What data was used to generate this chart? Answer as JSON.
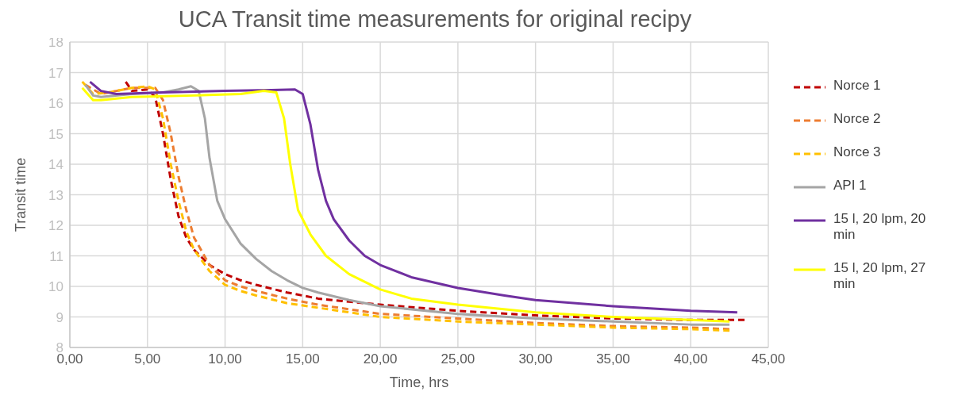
{
  "chart_data": {
    "type": "line",
    "title": "UCA Transit time measurements for original recipy",
    "xlabel": "Time, hrs",
    "ylabel": "Transit time",
    "xlim": [
      0,
      45
    ],
    "xticks": [
      {
        "value": 0,
        "label": "0,00"
      },
      {
        "value": 5,
        "label": "5,00"
      },
      {
        "value": 10,
        "label": "10,00"
      },
      {
        "value": 15,
        "label": "15,00"
      },
      {
        "value": 20,
        "label": "20,00"
      },
      {
        "value": 25,
        "label": "25,00"
      },
      {
        "value": 30,
        "label": "30,00"
      },
      {
        "value": 35,
        "label": "35,00"
      },
      {
        "value": 40,
        "label": "40,00"
      },
      {
        "value": 45,
        "label": "45,00"
      }
    ],
    "ylim": [
      8,
      18
    ],
    "yticks": [
      8,
      9,
      10,
      11,
      12,
      13,
      14,
      15,
      16,
      17,
      18
    ],
    "grid": true,
    "legend": "right",
    "marker": "none",
    "series": [
      {
        "name": "Norce 1",
        "color": "#c00000",
        "line_style": "dashed",
        "x": [
          3.6,
          4,
          5,
          5.5,
          6,
          6.5,
          7,
          7.5,
          8,
          9,
          10,
          11,
          12,
          14,
          16,
          18,
          20,
          25,
          30,
          35,
          40,
          43.5
        ],
        "values": [
          16.7,
          16.4,
          16.45,
          16.2,
          15,
          13.5,
          12.3,
          11.6,
          11.2,
          10.7,
          10.4,
          10.2,
          10.05,
          9.8,
          9.6,
          9.5,
          9.4,
          9.2,
          9.05,
          8.95,
          8.9,
          8.9
        ]
      },
      {
        "name": "Norce 2",
        "color": "#ed7d31",
        "line_style": "dashed",
        "x": [
          1,
          2,
          3,
          4,
          5.5,
          6,
          6.5,
          7,
          7.5,
          8,
          9,
          10,
          11,
          12,
          14,
          16,
          18,
          20,
          25,
          30,
          35,
          40,
          42.5
        ],
        "values": [
          16.6,
          16.3,
          16.4,
          16.5,
          16.5,
          16.1,
          15,
          13.6,
          12.5,
          11.6,
          10.7,
          10.2,
          10,
          9.85,
          9.6,
          9.4,
          9.25,
          9.1,
          8.95,
          8.8,
          8.7,
          8.65,
          8.6
        ]
      },
      {
        "name": "Norce 3",
        "color": "#ffc000",
        "line_style": "dashed",
        "x": [
          0.8,
          1.5,
          2.5,
          4,
          5,
          5.5,
          6,
          6.5,
          7,
          7.5,
          8,
          9,
          10,
          11,
          12,
          14,
          16,
          18,
          20,
          25,
          30,
          35,
          40,
          42.5
        ],
        "values": [
          16.7,
          16.3,
          16.35,
          16.5,
          16.55,
          16.45,
          15.5,
          14,
          12.8,
          11.8,
          11.2,
          10.5,
          10.05,
          9.85,
          9.7,
          9.45,
          9.3,
          9.15,
          9,
          8.85,
          8.75,
          8.65,
          8.6,
          8.55
        ]
      },
      {
        "name": "API 1",
        "color": "#a5a5a5",
        "line_style": "solid",
        "x": [
          1,
          1.5,
          2,
          4,
          6,
          7,
          7.8,
          8.3,
          8.7,
          9,
          9.5,
          10,
          11,
          12,
          13,
          14,
          15,
          16,
          18,
          20,
          25,
          30,
          35,
          40,
          42.5
        ],
        "values": [
          16.6,
          16.25,
          16.2,
          16.3,
          16.35,
          16.45,
          16.55,
          16.4,
          15.5,
          14.2,
          12.8,
          12.2,
          11.4,
          10.9,
          10.5,
          10.2,
          9.95,
          9.8,
          9.55,
          9.35,
          9.1,
          8.95,
          8.85,
          8.75,
          8.75
        ]
      },
      {
        "name": "15 l, 20 lpm, 20 min",
        "color": "#7030a0",
        "line_style": "solid",
        "x": [
          1.3,
          2,
          3,
          6,
          10,
          13,
          14.5,
          15,
          15.5,
          16,
          16.5,
          17,
          18,
          19,
          20,
          22,
          25,
          28,
          30,
          35,
          40,
          43
        ],
        "values": [
          16.7,
          16.4,
          16.3,
          16.35,
          16.4,
          16.43,
          16.45,
          16.3,
          15.3,
          13.8,
          12.8,
          12.2,
          11.5,
          11,
          10.7,
          10.3,
          9.95,
          9.7,
          9.55,
          9.35,
          9.2,
          9.15
        ]
      },
      {
        "name": "15 l, 20 lpm, 27 min",
        "color": "#ffff00",
        "line_style": "solid",
        "x": [
          0.8,
          1.5,
          2,
          4,
          8,
          11,
          12.5,
          13.3,
          13.8,
          14.2,
          14.7,
          15.5,
          16.5,
          18,
          20,
          22,
          25,
          30,
          35,
          40,
          42.5
        ],
        "values": [
          16.5,
          16.1,
          16.1,
          16.2,
          16.25,
          16.3,
          16.4,
          16.35,
          15.5,
          14,
          12.5,
          11.7,
          11,
          10.4,
          9.9,
          9.6,
          9.4,
          9.15,
          9,
          8.9,
          8.85
        ]
      }
    ]
  }
}
